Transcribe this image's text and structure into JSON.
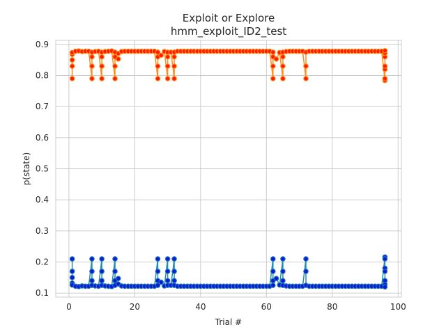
{
  "chart_data": {
    "type": "line",
    "title": "Exploit or Explore",
    "subtitle": "hmm_exploit_ID2_test",
    "xlabel": "Trial #",
    "ylabel": "p(state)",
    "xlim": [
      -4,
      101
    ],
    "ylim": [
      0.087,
      0.913
    ],
    "xticks": [
      0,
      20,
      40,
      60,
      80,
      100
    ],
    "yticks": [
      0.1,
      0.2,
      0.3,
      0.4,
      0.5,
      0.6,
      0.7,
      0.8,
      0.9
    ],
    "grid": true,
    "series": [
      {
        "line_color": "#ff8c1a",
        "marker_face": "#ff1a00",
        "marker_edge": "#ff8c1a",
        "x": [
          1,
          1,
          1,
          1,
          1,
          2,
          3,
          4,
          5,
          6,
          7,
          7,
          7,
          7,
          8,
          9,
          10,
          10,
          10,
          10,
          11,
          12,
          13,
          14,
          14,
          14,
          14,
          15,
          15,
          16,
          17,
          18,
          19,
          20,
          21,
          22,
          23,
          24,
          25,
          26,
          27,
          27,
          27,
          27,
          28,
          29,
          30,
          30,
          30,
          30,
          31,
          32,
          32,
          32,
          32,
          33,
          34,
          35,
          36,
          37,
          38,
          39,
          40,
          41,
          42,
          43,
          44,
          45,
          46,
          47,
          48,
          49,
          50,
          51,
          52,
          53,
          54,
          55,
          56,
          57,
          58,
          59,
          60,
          61,
          62,
          62,
          62,
          62,
          63,
          64,
          65,
          65,
          65,
          65,
          66,
          67,
          68,
          69,
          70,
          71,
          72,
          72,
          72,
          73,
          74,
          75,
          76,
          77,
          78,
          79,
          80,
          81,
          82,
          83,
          84,
          85,
          86,
          87,
          88,
          89,
          90,
          91,
          92,
          93,
          94,
          95,
          96,
          96,
          96,
          96,
          96,
          96,
          96
        ],
        "y": [
          0.79,
          0.83,
          0.85,
          0.868,
          0.874,
          0.878,
          0.879,
          0.877,
          0.878,
          0.878,
          0.79,
          0.83,
          0.86,
          0.875,
          0.877,
          0.878,
          0.79,
          0.83,
          0.86,
          0.875,
          0.877,
          0.878,
          0.879,
          0.79,
          0.83,
          0.86,
          0.875,
          0.853,
          0.871,
          0.877,
          0.878,
          0.878,
          0.878,
          0.878,
          0.878,
          0.878,
          0.878,
          0.878,
          0.878,
          0.878,
          0.79,
          0.83,
          0.86,
          0.875,
          0.865,
          0.877,
          0.79,
          0.83,
          0.86,
          0.875,
          0.875,
          0.79,
          0.83,
          0.86,
          0.875,
          0.878,
          0.878,
          0.878,
          0.878,
          0.878,
          0.878,
          0.878,
          0.878,
          0.878,
          0.878,
          0.878,
          0.878,
          0.878,
          0.878,
          0.878,
          0.878,
          0.878,
          0.878,
          0.878,
          0.878,
          0.878,
          0.878,
          0.878,
          0.878,
          0.878,
          0.878,
          0.878,
          0.878,
          0.878,
          0.79,
          0.83,
          0.86,
          0.875,
          0.853,
          0.874,
          0.79,
          0.83,
          0.86,
          0.875,
          0.877,
          0.878,
          0.878,
          0.878,
          0.878,
          0.878,
          0.79,
          0.83,
          0.875,
          0.878,
          0.878,
          0.878,
          0.878,
          0.878,
          0.878,
          0.878,
          0.878,
          0.878,
          0.878,
          0.878,
          0.878,
          0.878,
          0.878,
          0.878,
          0.878,
          0.878,
          0.878,
          0.878,
          0.878,
          0.878,
          0.878,
          0.878,
          0.784,
          0.79,
          0.82,
          0.83,
          0.86,
          0.872,
          0.88
        ]
      },
      {
        "line_color": "#1f8fb4",
        "marker_face": "#0a1ad8",
        "marker_edge": "#1f77b4",
        "x": [
          1,
          1,
          1,
          1,
          1,
          2,
          3,
          4,
          5,
          6,
          7,
          7,
          7,
          7,
          8,
          9,
          10,
          10,
          10,
          10,
          11,
          12,
          13,
          14,
          14,
          14,
          14,
          15,
          15,
          16,
          17,
          18,
          19,
          20,
          21,
          22,
          23,
          24,
          25,
          26,
          27,
          27,
          27,
          27,
          28,
          29,
          30,
          30,
          30,
          30,
          31,
          32,
          32,
          32,
          32,
          33,
          34,
          35,
          36,
          37,
          38,
          39,
          40,
          41,
          42,
          43,
          44,
          45,
          46,
          47,
          48,
          49,
          50,
          51,
          52,
          53,
          54,
          55,
          56,
          57,
          58,
          59,
          60,
          61,
          62,
          62,
          62,
          62,
          63,
          64,
          65,
          65,
          65,
          65,
          66,
          67,
          68,
          69,
          70,
          71,
          72,
          72,
          72,
          73,
          74,
          75,
          76,
          77,
          78,
          79,
          80,
          81,
          82,
          83,
          84,
          85,
          86,
          87,
          88,
          89,
          90,
          91,
          92,
          93,
          94,
          95,
          96,
          96,
          96,
          96,
          96,
          96,
          96
        ],
        "y": [
          0.21,
          0.17,
          0.15,
          0.132,
          0.126,
          0.122,
          0.121,
          0.123,
          0.122,
          0.122,
          0.21,
          0.17,
          0.14,
          0.125,
          0.123,
          0.122,
          0.21,
          0.17,
          0.14,
          0.125,
          0.123,
          0.122,
          0.121,
          0.21,
          0.17,
          0.14,
          0.125,
          0.147,
          0.129,
          0.123,
          0.122,
          0.122,
          0.122,
          0.122,
          0.122,
          0.122,
          0.122,
          0.122,
          0.122,
          0.122,
          0.21,
          0.17,
          0.14,
          0.125,
          0.135,
          0.123,
          0.21,
          0.17,
          0.14,
          0.125,
          0.125,
          0.21,
          0.17,
          0.14,
          0.125,
          0.122,
          0.122,
          0.122,
          0.122,
          0.122,
          0.122,
          0.122,
          0.122,
          0.122,
          0.122,
          0.122,
          0.122,
          0.122,
          0.122,
          0.122,
          0.122,
          0.122,
          0.122,
          0.122,
          0.122,
          0.122,
          0.122,
          0.122,
          0.122,
          0.122,
          0.122,
          0.122,
          0.122,
          0.122,
          0.21,
          0.17,
          0.14,
          0.125,
          0.147,
          0.126,
          0.21,
          0.17,
          0.14,
          0.125,
          0.123,
          0.122,
          0.122,
          0.122,
          0.122,
          0.122,
          0.21,
          0.17,
          0.125,
          0.122,
          0.122,
          0.122,
          0.122,
          0.122,
          0.122,
          0.122,
          0.122,
          0.122,
          0.122,
          0.122,
          0.122,
          0.122,
          0.122,
          0.122,
          0.122,
          0.122,
          0.122,
          0.122,
          0.122,
          0.122,
          0.122,
          0.122,
          0.216,
          0.21,
          0.18,
          0.17,
          0.14,
          0.128,
          0.12
        ]
      }
    ]
  }
}
